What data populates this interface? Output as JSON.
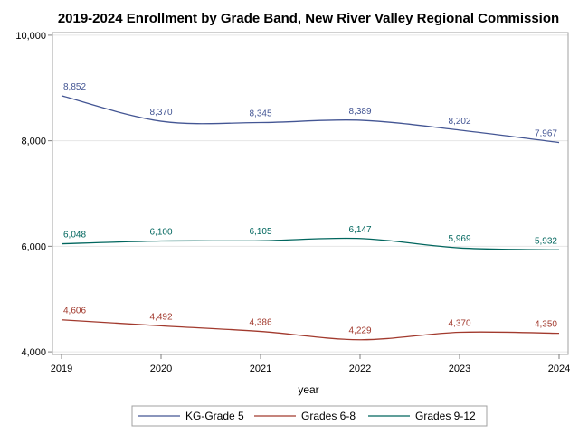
{
  "chart_data": {
    "type": "line",
    "title": "2019-2024 Enrollment by Grade Band, New River Valley Regional Commission",
    "xlabel": "year",
    "ylabel": "",
    "x": [
      2019,
      2020,
      2021,
      2022,
      2023,
      2024
    ],
    "x_tick_labels": [
      "2019",
      "2020",
      "2021",
      "2022",
      "2023",
      "2024"
    ],
    "ylim": [
      3950,
      10050
    ],
    "y_ticks": [
      4000,
      6000,
      8000,
      10000
    ],
    "y_tick_labels": [
      "4,000",
      "6,000",
      "8,000",
      "10,000"
    ],
    "grid": "horizontal",
    "legend_position": "bottom",
    "series": [
      {
        "name": "KG-Grade 5",
        "color": "#445694",
        "values": [
          8852,
          8370,
          8345,
          8389,
          8202,
          7967
        ],
        "labels": [
          "8,852",
          "8,370",
          "8,345",
          "8,389",
          "8,202",
          "7,967"
        ]
      },
      {
        "name": "Grades 6-8",
        "color": "#a23a2e",
        "values": [
          4606,
          4492,
          4386,
          4229,
          4370,
          4350
        ],
        "labels": [
          "4,606",
          "4,492",
          "4,386",
          "4,229",
          "4,370",
          "4,350"
        ]
      },
      {
        "name": "Grades 9-12",
        "color": "#01665e",
        "values": [
          6048,
          6100,
          6105,
          6147,
          5969,
          5932
        ],
        "labels": [
          "6,048",
          "6,100",
          "6,105",
          "6,147",
          "5,969",
          "5,932"
        ]
      }
    ]
  }
}
